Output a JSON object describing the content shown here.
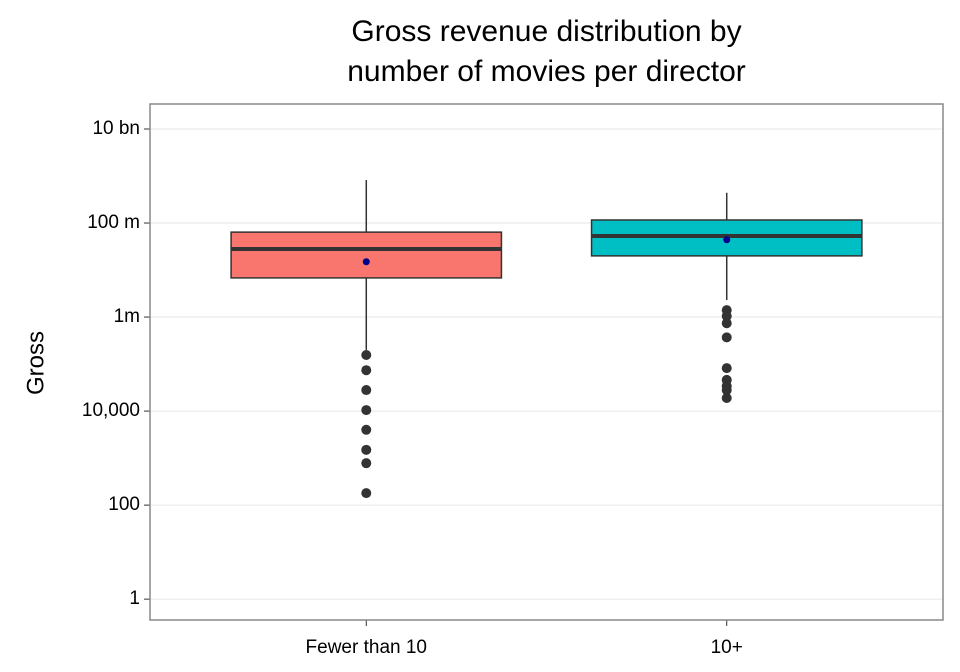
{
  "chart_data": {
    "type": "box",
    "title": "Gross revenue distribution by\nnumber of movies per director",
    "y_label": "Gross",
    "categories": [
      "Fewer than 10",
      "10+"
    ],
    "colors": [
      "#F8766D",
      "#00BFC4"
    ],
    "mean_color": "#00008B",
    "log_y": true,
    "grid": true,
    "ylim": [
      0.36,
      34000000000
    ],
    "yticks": [
      {
        "value": 10000000000,
        "label": "10 bn"
      },
      {
        "value": 100000000,
        "label": "100 m"
      },
      {
        "value": 1000000,
        "label": "1m"
      },
      {
        "value": 10000,
        "label": "10,000"
      },
      100,
      1
    ],
    "boxes": [
      {
        "whisker_low": 200000,
        "q1": 6800000,
        "median": 28000000,
        "q3": 64000000,
        "whisker_high": 820000000,
        "mean": 15000000,
        "outliers": [
          156000,
          74000,
          28000,
          10500,
          4000,
          1500,
          780,
          180
        ]
      },
      {
        "whisker_low": 2300000,
        "q1": 20000000,
        "median": 53000000,
        "q3": 116000000,
        "whisker_high": 440000000,
        "mean": 44000000,
        "outliers": [
          1400000,
          1050000,
          740000,
          370000,
          82000,
          46000,
          34000,
          28000,
          19000
        ]
      }
    ]
  }
}
